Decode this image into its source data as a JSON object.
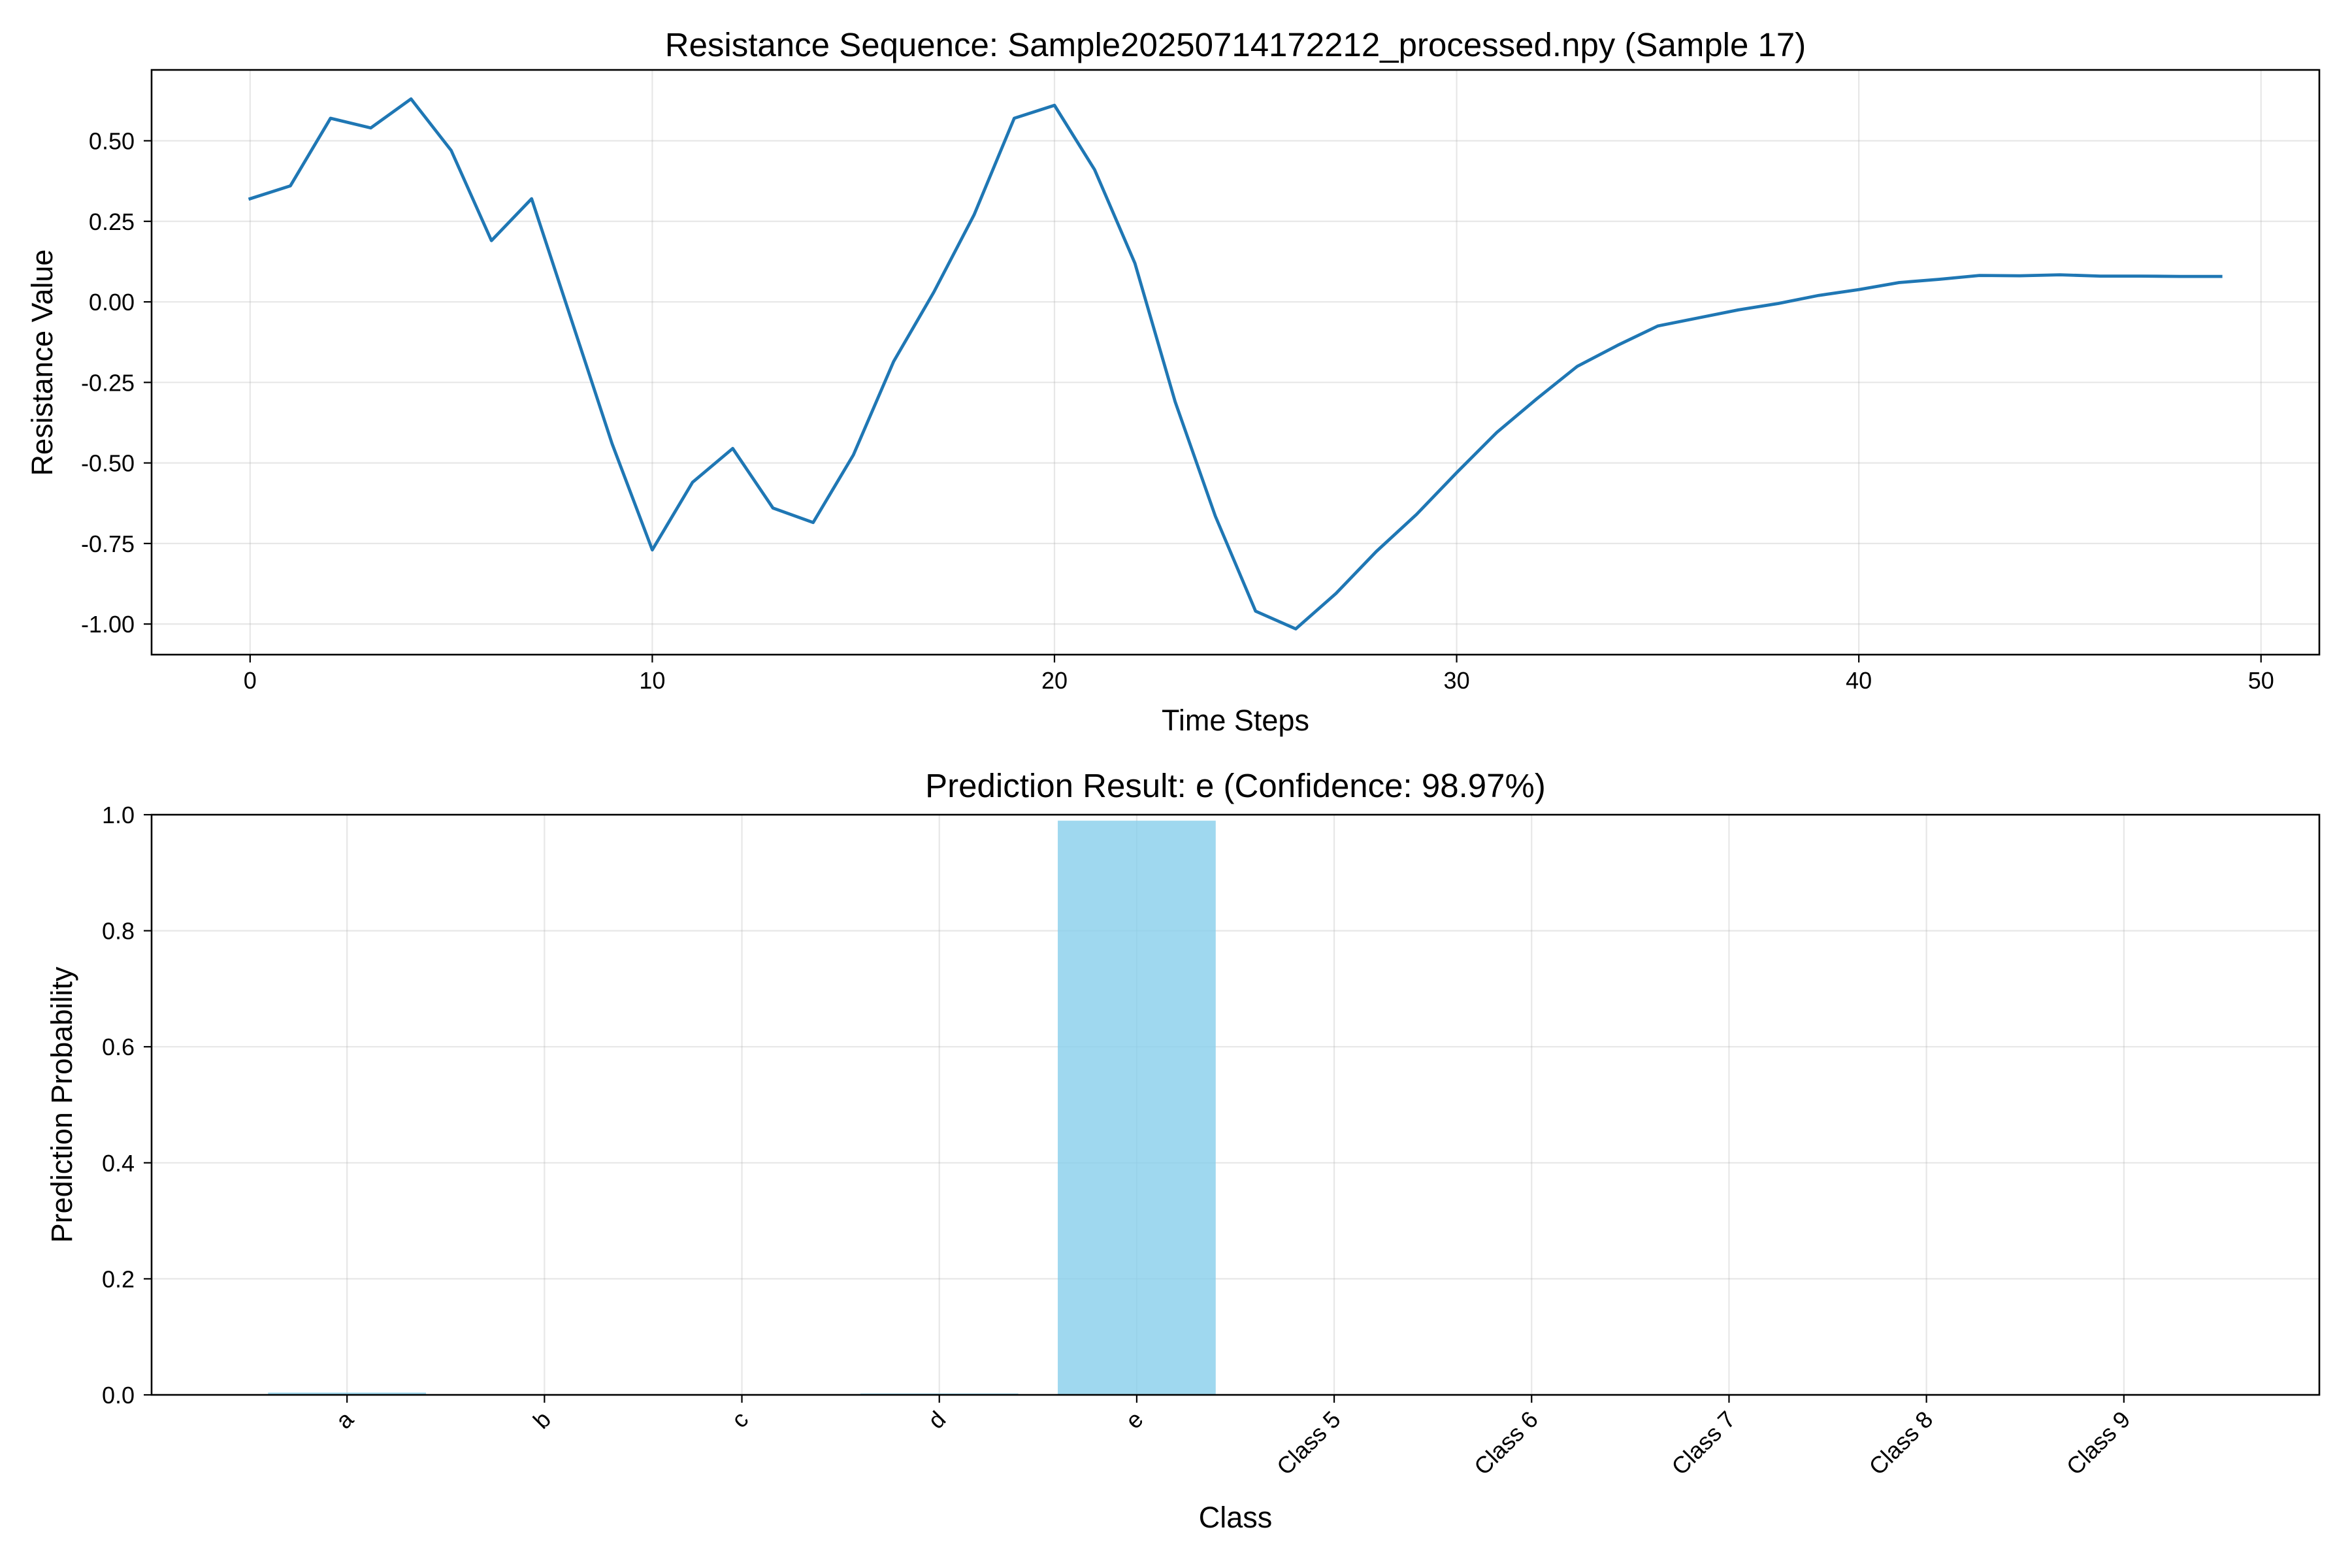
{
  "chart_data": [
    {
      "type": "line",
      "title": "Resistance Sequence: Sample20250714172212_processed.npy (Sample 17)",
      "xlabel": "Time Steps",
      "ylabel": "Resistance Value",
      "xlim": [
        -2.45,
        51.45
      ],
      "ylim": [
        -1.095,
        0.72
      ],
      "xticks": [
        0,
        10,
        20,
        30,
        40,
        50
      ],
      "xtick_labels": [
        "0",
        "10",
        "20",
        "30",
        "40",
        "50"
      ],
      "yticks": [
        0.5,
        0.25,
        0.0,
        -0.25,
        -0.5,
        -0.75,
        -1.0
      ],
      "ytick_labels": [
        "0.50",
        "0.25",
        "0.00",
        "-0.25",
        "-0.50",
        "-0.75",
        "-1.00"
      ],
      "grid": true,
      "line_color": "#1f77b4",
      "series": [
        {
          "x": [
            0,
            1,
            2,
            3,
            4,
            5,
            6,
            7,
            8,
            9,
            10,
            11,
            12,
            13,
            14,
            15,
            16,
            17,
            18,
            19,
            20,
            21,
            22,
            23,
            24,
            25,
            26,
            27,
            28,
            29,
            30,
            31,
            32,
            33,
            34,
            35,
            36,
            37,
            38,
            39,
            40,
            41,
            42,
            43,
            44,
            45,
            46,
            47,
            48,
            49
          ],
          "values": [
            0.32,
            0.36,
            0.57,
            0.54,
            0.63,
            0.47,
            0.19,
            0.32,
            -0.06,
            -0.44,
            -0.77,
            -0.56,
            -0.455,
            -0.64,
            -0.685,
            -0.475,
            -0.185,
            0.03,
            0.27,
            0.57,
            0.61,
            0.41,
            0.12,
            -0.31,
            -0.665,
            -0.96,
            -1.015,
            -0.905,
            -0.775,
            -0.66,
            -0.53,
            -0.405,
            -0.3,
            -0.2,
            -0.135,
            -0.075,
            -0.05,
            -0.025,
            -0.005,
            0.02,
            0.038,
            0.06,
            0.07,
            0.082,
            0.081,
            0.084,
            0.08,
            0.08,
            0.079,
            0.079
          ]
        }
      ]
    },
    {
      "type": "bar",
      "title": "Prediction Result: e (Confidence: 98.97%)",
      "xlabel": "Class",
      "ylabel": "Prediction Probability",
      "ylim": [
        0,
        1.0
      ],
      "yticks": [
        0.0,
        0.2,
        0.4,
        0.6,
        0.8,
        1.0
      ],
      "ytick_labels": [
        "0.0",
        "0.2",
        "0.4",
        "0.6",
        "0.8",
        "1.0"
      ],
      "grid": true,
      "bar_color": "#87ceeb",
      "categories": [
        "a",
        "b",
        "c",
        "d",
        "e",
        "Class 5",
        "Class 6",
        "Class 7",
        "Class 8",
        "Class 9"
      ],
      "values": [
        0.004,
        0.0005,
        0.001,
        0.0025,
        0.9897,
        0.0,
        0.0,
        0.0,
        0.0,
        0.0
      ]
    }
  ]
}
